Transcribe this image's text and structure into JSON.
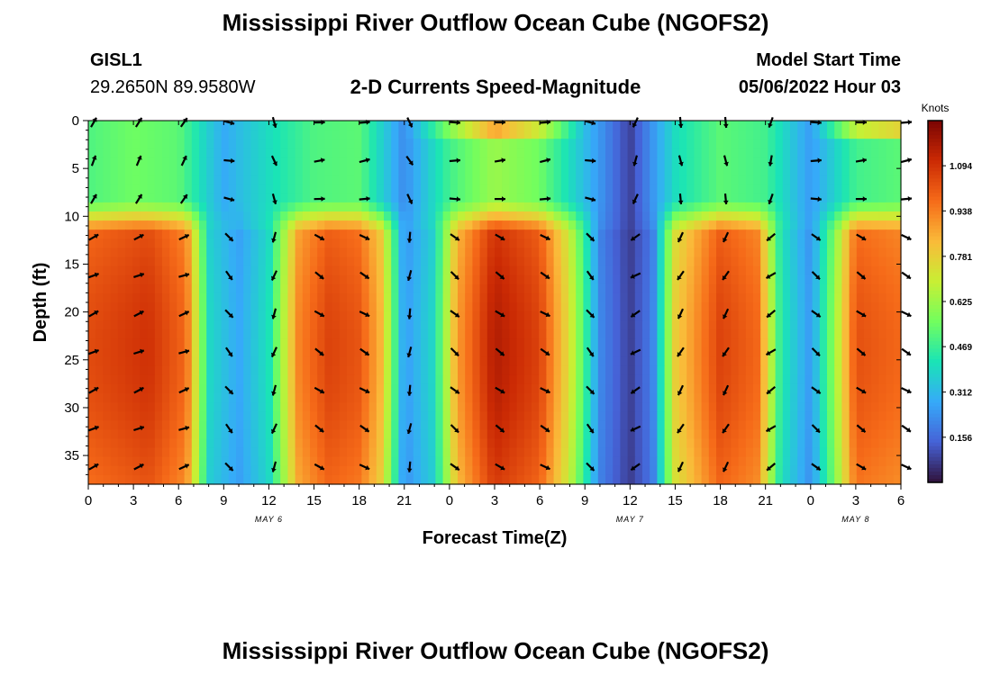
{
  "header": {
    "title": "Mississippi River Outflow Ocean Cube (NGOFS2)",
    "station": "GISL1",
    "coords": "29.2650N  89.9580W",
    "subtitle": "2-D Currents Speed-Magnitude",
    "start_label": "Model Start Time",
    "start_value": "05/06/2022 Hour 03",
    "footer_title": "Mississippi River Outflow Ocean Cube (NGOFS2)"
  },
  "chart_data": {
    "type": "heatmap",
    "title": "2-D Currents Speed-Magnitude",
    "xlabel": "Forecast Time(Z)",
    "ylabel": "Depth (ft)",
    "x_ticks": [
      "0",
      "3",
      "6",
      "9",
      "12",
      "15",
      "18",
      "21",
      "0",
      "3",
      "6",
      "9",
      "12",
      "15",
      "18",
      "21",
      "0",
      "3",
      "6"
    ],
    "x_range_hours": [
      0,
      54
    ],
    "date_labels": [
      {
        "text": "MAY 6",
        "hour": 12
      },
      {
        "text": "MAY 7",
        "hour": 36
      },
      {
        "text": "MAY 8",
        "hour": 51
      }
    ],
    "y_ticks": [
      0,
      5,
      10,
      15,
      20,
      25,
      30,
      35
    ],
    "y_range": [
      0,
      38
    ],
    "y_inverted": true,
    "colorbar": {
      "label": "Knots",
      "ticks": [
        "1.094",
        "0.938",
        "0.781",
        "0.625",
        "0.469",
        "0.312",
        "0.156"
      ],
      "range": [
        0.0,
        1.25
      ],
      "colors": [
        "#30123b",
        "#4662d7",
        "#36aaf9",
        "#1ae4b6",
        "#72fe5e",
        "#c8ef34",
        "#faba39",
        "#f66b19",
        "#cb2a04",
        "#7a0403"
      ]
    },
    "speed_lower_by_hour": [
      [
        0,
        1.06
      ],
      [
        4,
        1.12
      ],
      [
        6.5,
        1.0
      ],
      [
        8,
        0.4
      ],
      [
        10,
        0.28
      ],
      [
        12,
        0.42
      ],
      [
        14,
        0.95
      ],
      [
        16,
        1.08
      ],
      [
        18,
        1.04
      ],
      [
        19.5,
        0.85
      ],
      [
        21,
        0.25
      ],
      [
        23,
        0.4
      ],
      [
        24.5,
        0.9
      ],
      [
        27,
        1.18
      ],
      [
        30,
        1.08
      ],
      [
        32,
        0.75
      ],
      [
        34,
        0.22
      ],
      [
        36,
        0.08
      ],
      [
        37.5,
        0.2
      ],
      [
        39,
        0.8
      ],
      [
        42,
        1.08
      ],
      [
        44.5,
        1.0
      ],
      [
        46,
        0.45
      ],
      [
        48,
        0.25
      ],
      [
        49.5,
        0.6
      ],
      [
        51,
        1.05
      ],
      [
        54,
        1.0
      ]
    ],
    "speed_upper_by_hour": [
      [
        0,
        0.5
      ],
      [
        3,
        0.55
      ],
      [
        6,
        0.52
      ],
      [
        9,
        0.28
      ],
      [
        12,
        0.4
      ],
      [
        15,
        0.5
      ],
      [
        18,
        0.52
      ],
      [
        21,
        0.22
      ],
      [
        24,
        0.48
      ],
      [
        27,
        0.62
      ],
      [
        30,
        0.55
      ],
      [
        33,
        0.32
      ],
      [
        36,
        0.08
      ],
      [
        39,
        0.4
      ],
      [
        42,
        0.52
      ],
      [
        45,
        0.48
      ],
      [
        48,
        0.25
      ],
      [
        51,
        0.48
      ],
      [
        54,
        0.52
      ]
    ],
    "surface_boost_by_hour": [
      [
        0,
        0
      ],
      [
        21,
        0
      ],
      [
        24,
        0.1
      ],
      [
        27,
        0.25
      ],
      [
        30,
        0.15
      ],
      [
        33,
        0
      ],
      [
        48,
        0
      ],
      [
        51,
        0.2
      ],
      [
        54,
        0.25
      ]
    ],
    "vector_depths_ft": [
      0,
      4,
      8,
      12,
      16,
      20,
      24,
      28,
      32,
      36
    ],
    "vector_direction_deg_by_hour": [
      [
        0,
        -25
      ],
      [
        6,
        -20
      ],
      [
        8,
        30
      ],
      [
        10,
        70
      ],
      [
        12,
        110
      ],
      [
        14,
        35
      ],
      [
        18,
        30
      ],
      [
        20,
        80
      ],
      [
        22,
        120
      ],
      [
        24,
        40
      ],
      [
        30,
        30
      ],
      [
        33,
        50
      ],
      [
        36,
        150
      ],
      [
        40,
        110
      ],
      [
        44,
        130
      ],
      [
        46,
        160
      ],
      [
        48,
        40
      ],
      [
        54,
        30
      ]
    ]
  }
}
